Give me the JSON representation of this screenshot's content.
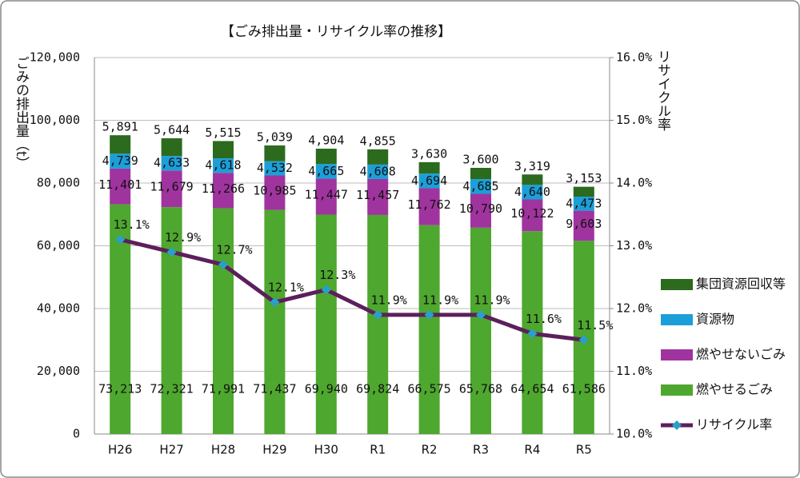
{
  "chart_data": {
    "type": "bar",
    "stacked": true,
    "title": "【ごみ排出量・リサイクル率の推移】",
    "y_label": "ごみの排出量（t）",
    "y2_label": "リサイクル率",
    "categories": [
      "H26",
      "H27",
      "H28",
      "H29",
      "H30",
      "R1",
      "R2",
      "R3",
      "R4",
      "R5"
    ],
    "series": [
      {
        "name": "燃やせるごみ",
        "color": "#4ea72e",
        "values": [
          73213,
          72321,
          71991,
          71437,
          69940,
          69824,
          66575,
          65768,
          64654,
          61586
        ],
        "value_labels": [
          "73,213",
          "72,321",
          "71,991",
          "71,437",
          "69,940",
          "69,824",
          "66,575",
          "65,768",
          "64,654",
          "61,586"
        ]
      },
      {
        "name": "燃やせないごみ",
        "color": "#a0349e",
        "values": [
          11401,
          11679,
          11266,
          10985,
          11447,
          11457,
          11762,
          10790,
          10122,
          9603
        ],
        "value_labels": [
          "11,401",
          "11,679",
          "11,266",
          "10,985",
          "11,447",
          "11,457",
          "11,762",
          "10,790",
          "10,122",
          "9,603"
        ]
      },
      {
        "name": "資源物",
        "color": "#1c9fd8",
        "values": [
          4739,
          4633,
          4618,
          4532,
          4665,
          4608,
          4694,
          4685,
          4640,
          4473
        ],
        "value_labels": [
          "4,739",
          "4,633",
          "4,618",
          "4,532",
          "4,665",
          "4,608",
          "4,694",
          "4,685",
          "4,640",
          "4,473"
        ]
      },
      {
        "name": "集団資源回収等",
        "color": "#2c6a1e",
        "values": [
          5891,
          5644,
          5515,
          5039,
          4904,
          4855,
          3630,
          3600,
          3319,
          3153
        ],
        "value_labels": [
          "5,891",
          "5,644",
          "5,515",
          "5,039",
          "4,904",
          "4,855",
          "3,630",
          "3,600",
          "3,319",
          "3,153"
        ]
      },
      {
        "name": "リサイクル率",
        "color": "#5c1f5c",
        "axis": "y2",
        "marker_color": "#2aa0c8",
        "values": [
          13.1,
          12.9,
          12.7,
          12.1,
          12.3,
          11.9,
          11.9,
          11.9,
          11.6,
          11.5
        ],
        "value_labels": [
          "13.1%",
          "12.9%",
          "12.7%",
          "12.1%",
          "12.3%",
          "11.9%",
          "11.9%",
          "11.9%",
          "11.6%",
          "11.5%"
        ]
      }
    ],
    "ylim": [
      0,
      120000
    ],
    "yticks": [
      0,
      {
        "value": 20000,
        "label": "20,000"
      },
      {
        "value": 40000,
        "label": "40,000"
      },
      {
        "value": 60000,
        "label": "60,000"
      },
      {
        "value": 80000,
        "label": "80,000"
      },
      {
        "value": 100000,
        "label": "100,000"
      },
      {
        "value": 120000,
        "label": "120,000"
      }
    ],
    "y2lim": [
      10,
      16
    ],
    "y2ticks": [
      {
        "value": 10,
        "label": "10.0%"
      },
      {
        "value": 11,
        "label": "11.0%"
      },
      {
        "value": 12,
        "label": "12.0%"
      },
      {
        "value": 13,
        "label": "13.0%"
      },
      {
        "value": 14,
        "label": "14.0%"
      },
      {
        "value": 15,
        "label": "15.0%"
      },
      {
        "value": 16,
        "label": "16.0%"
      }
    ],
    "grid": true,
    "legend": "right"
  }
}
